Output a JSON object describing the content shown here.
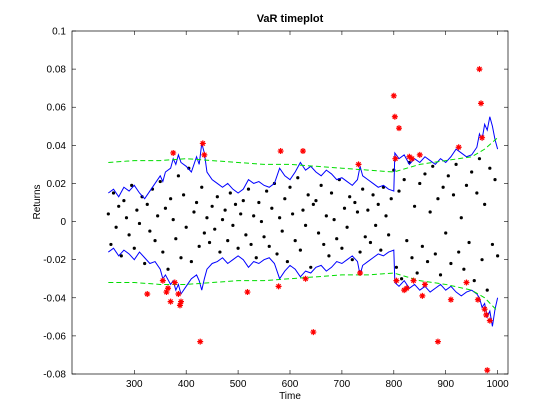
{
  "chart_data": {
    "type": "line",
    "title": "VaR timeplot",
    "xlabel": "Time",
    "ylabel": "Returns",
    "xlim": [
      180,
      1020
    ],
    "xticks": [
      300,
      400,
      500,
      600,
      700,
      800,
      900,
      1000
    ],
    "ylim": [
      -0.08,
      0.1
    ],
    "yticks": [
      -0.08,
      -0.06,
      -0.04,
      -0.02,
      0,
      0.02,
      0.04,
      0.06,
      0.08,
      0.1
    ],
    "grid": false,
    "series": [
      {
        "style": "markers",
        "color": "#000000",
        "x": [
          250,
          255,
          260,
          265,
          270,
          275,
          280,
          285,
          290,
          295,
          300,
          305,
          310,
          315,
          320,
          325,
          330,
          335,
          340,
          345,
          350,
          355,
          360,
          365,
          370,
          375,
          380,
          385,
          390,
          395,
          400,
          405,
          410,
          415,
          420,
          425,
          430,
          435,
          440,
          445,
          450,
          455,
          460,
          465,
          470,
          475,
          480,
          485,
          490,
          495,
          500,
          505,
          510,
          515,
          520,
          525,
          530,
          535,
          540,
          545,
          550,
          555,
          560,
          565,
          570,
          575,
          580,
          585,
          590,
          595,
          600,
          605,
          610,
          615,
          620,
          625,
          630,
          635,
          640,
          645,
          650,
          655,
          660,
          665,
          670,
          675,
          680,
          685,
          690,
          695,
          700,
          705,
          710,
          715,
          720,
          725,
          730,
          735,
          740,
          745,
          750,
          755,
          760,
          765,
          770,
          775,
          780,
          785,
          790,
          795,
          800,
          805,
          810,
          815,
          820,
          825,
          830,
          835,
          840,
          845,
          850,
          855,
          860,
          865,
          870,
          875,
          880,
          885,
          890,
          895,
          900,
          905,
          910,
          915,
          920,
          925,
          930,
          935,
          940,
          945,
          950,
          955,
          960,
          965,
          970,
          975,
          980,
          985,
          990,
          995,
          1000
        ],
        "values": [
          0.004,
          -0.012,
          0.015,
          -0.003,
          0.008,
          -0.018,
          0.011,
          0.002,
          -0.007,
          0.019,
          -0.014,
          0.006,
          -0.001,
          0.013,
          -0.022,
          0.009,
          -0.005,
          0.017,
          -0.01,
          0.003,
          0.021,
          -0.016,
          0.007,
          -0.025,
          0.012,
          0.001,
          -0.009,
          0.024,
          -0.019,
          0.014,
          -0.003,
          0.028,
          -0.021,
          0.005,
          0.01,
          -0.013,
          0.018,
          -0.006,
          0.002,
          -0.011,
          0.008,
          -0.004,
          0.013,
          -0.016,
          0.001,
          0.006,
          -0.01,
          0.015,
          -0.002,
          0.009,
          -0.014,
          0.004,
          0.011,
          -0.007,
          0.017,
          -0.012,
          0.003,
          -0.019,
          0.01,
          0.0,
          -0.008,
          0.016,
          -0.013,
          0.007,
          0.02,
          -0.017,
          0.002,
          -0.005,
          0.012,
          -0.021,
          0.018,
          0.004,
          -0.01,
          0.023,
          -0.015,
          0.006,
          -0.002,
          0.014,
          -0.024,
          0.009,
          0.011,
          -0.006,
          0.019,
          -0.012,
          0.003,
          -0.018,
          0.015,
          0.001,
          -0.009,
          0.022,
          -0.014,
          0.007,
          -0.003,
          0.013,
          -0.02,
          0.01,
          0.005,
          -0.016,
          0.017,
          -0.008,
          0.006,
          -0.011,
          0.014,
          -0.002,
          0.009,
          -0.015,
          0.018,
          0.003,
          -0.007,
          0.012,
          0.027,
          -0.024,
          0.016,
          -0.03,
          0.022,
          -0.01,
          0.031,
          -0.019,
          0.008,
          -0.027,
          0.02,
          -0.013,
          0.025,
          -0.021,
          0.005,
          0.029,
          -0.017,
          0.012,
          -0.028,
          0.018,
          -0.006,
          0.024,
          -0.022,
          0.014,
          0.03,
          -0.016,
          0.002,
          -0.025,
          0.019,
          -0.011,
          0.026,
          -0.031,
          0.015,
          0.033,
          -0.02,
          0.009,
          -0.036,
          0.028,
          -0.012,
          0.022,
          -0.018
        ]
      },
      {
        "style": "line",
        "color": "#0000ff",
        "x": [
          250,
          260,
          270,
          280,
          290,
          300,
          310,
          320,
          330,
          340,
          350,
          355,
          360,
          370,
          375,
          380,
          385,
          390,
          400,
          410,
          420,
          425,
          430,
          435,
          440,
          450,
          460,
          470,
          480,
          490,
          500,
          510,
          520,
          530,
          540,
          550,
          560,
          570,
          580,
          590,
          600,
          610,
          620,
          630,
          640,
          650,
          660,
          670,
          680,
          690,
          700,
          710,
          720,
          730,
          735,
          740,
          750,
          760,
          770,
          780,
          790,
          800,
          802,
          810,
          820,
          830,
          840,
          850,
          860,
          870,
          880,
          890,
          900,
          910,
          920,
          930,
          940,
          950,
          960,
          965,
          970,
          975,
          980,
          985,
          990,
          995,
          1000
        ],
        "values": [
          0.015,
          0.017,
          0.013,
          0.018,
          0.016,
          0.019,
          0.015,
          0.012,
          0.016,
          0.02,
          0.024,
          0.021,
          0.026,
          0.028,
          0.033,
          0.03,
          0.035,
          0.031,
          0.029,
          0.026,
          0.034,
          0.03,
          0.041,
          0.036,
          0.026,
          0.022,
          0.02,
          0.018,
          0.02,
          0.017,
          0.015,
          0.017,
          0.022,
          0.02,
          0.021,
          0.019,
          0.018,
          0.02,
          0.028,
          0.024,
          0.022,
          0.026,
          0.031,
          0.027,
          0.029,
          0.026,
          0.024,
          0.027,
          0.025,
          0.022,
          0.023,
          0.021,
          0.019,
          0.022,
          0.029,
          0.024,
          0.022,
          0.02,
          0.018,
          0.019,
          0.017,
          0.016,
          0.036,
          0.033,
          0.035,
          0.03,
          0.033,
          0.031,
          0.034,
          0.032,
          0.03,
          0.033,
          0.031,
          0.034,
          0.038,
          0.036,
          0.034,
          0.035,
          0.039,
          0.046,
          0.043,
          0.051,
          0.048,
          0.055,
          0.05,
          0.043,
          0.038
        ]
      },
      {
        "style": "line",
        "color": "#0000ff",
        "x": [
          250,
          260,
          270,
          280,
          290,
          300,
          310,
          320,
          330,
          340,
          350,
          355,
          360,
          370,
          375,
          380,
          385,
          390,
          400,
          410,
          420,
          425,
          430,
          435,
          440,
          450,
          460,
          470,
          480,
          490,
          500,
          510,
          520,
          530,
          540,
          550,
          560,
          570,
          580,
          590,
          600,
          610,
          620,
          630,
          640,
          650,
          660,
          670,
          680,
          690,
          700,
          710,
          720,
          730,
          735,
          740,
          750,
          760,
          770,
          780,
          790,
          800,
          802,
          810,
          820,
          830,
          840,
          850,
          860,
          870,
          880,
          890,
          900,
          910,
          920,
          930,
          940,
          950,
          960,
          965,
          970,
          975,
          980,
          985,
          990,
          995,
          1000
        ],
        "values": [
          -0.016,
          -0.014,
          -0.018,
          -0.015,
          -0.017,
          -0.02,
          -0.016,
          -0.019,
          -0.022,
          -0.021,
          -0.025,
          -0.03,
          -0.028,
          -0.033,
          -0.031,
          -0.036,
          -0.033,
          -0.038,
          -0.034,
          -0.03,
          -0.028,
          -0.031,
          -0.036,
          -0.03,
          -0.025,
          -0.022,
          -0.021,
          -0.019,
          -0.022,
          -0.02,
          -0.018,
          -0.02,
          -0.024,
          -0.021,
          -0.022,
          -0.02,
          -0.019,
          -0.022,
          -0.03,
          -0.026,
          -0.023,
          -0.025,
          -0.029,
          -0.026,
          -0.027,
          -0.024,
          -0.023,
          -0.026,
          -0.024,
          -0.021,
          -0.022,
          -0.02,
          -0.018,
          -0.021,
          -0.028,
          -0.023,
          -0.021,
          -0.019,
          -0.017,
          -0.018,
          -0.016,
          -0.015,
          -0.032,
          -0.034,
          -0.031,
          -0.035,
          -0.033,
          -0.036,
          -0.034,
          -0.037,
          -0.035,
          -0.033,
          -0.036,
          -0.034,
          -0.037,
          -0.039,
          -0.037,
          -0.036,
          -0.038,
          -0.04,
          -0.045,
          -0.043,
          -0.05,
          -0.047,
          -0.055,
          -0.046,
          -0.04
        ]
      },
      {
        "style": "dashed",
        "color": "#00dd00",
        "x": [
          250,
          300,
          350,
          400,
          450,
          500,
          550,
          600,
          650,
          700,
          750,
          800,
          850,
          900,
          950,
          975,
          1000
        ],
        "values": [
          0.031,
          0.032,
          0.032,
          0.033,
          0.032,
          0.031,
          0.03,
          0.03,
          0.029,
          0.028,
          0.027,
          0.026,
          0.03,
          0.032,
          0.034,
          0.038,
          0.044
        ]
      },
      {
        "style": "dashed",
        "color": "#00dd00",
        "x": [
          250,
          300,
          350,
          400,
          450,
          500,
          550,
          600,
          650,
          700,
          750,
          800,
          850,
          900,
          950,
          975,
          1000
        ],
        "values": [
          -0.032,
          -0.032,
          -0.033,
          -0.033,
          -0.032,
          -0.031,
          -0.031,
          -0.03,
          -0.029,
          -0.028,
          -0.028,
          -0.027,
          -0.031,
          -0.033,
          -0.036,
          -0.04,
          -0.047
        ]
      },
      {
        "style": "asterisk",
        "color": "#ff0000",
        "x": [
          325,
          355,
          362,
          365,
          370,
          375,
          378,
          385,
          388,
          390,
          427,
          432,
          435,
          518,
          578,
          582,
          625,
          630,
          645,
          732,
          735,
          800,
          802,
          803,
          805,
          810,
          820,
          825,
          830,
          835,
          838,
          850,
          855,
          860,
          885,
          910,
          925,
          940,
          962,
          965,
          968,
          970,
          975,
          978,
          980,
          985
        ],
        "values": [
          -0.038,
          -0.031,
          -0.037,
          -0.035,
          -0.042,
          0.036,
          -0.032,
          -0.038,
          -0.044,
          -0.042,
          -0.063,
          0.041,
          0.035,
          -0.037,
          -0.034,
          0.037,
          0.037,
          -0.03,
          -0.058,
          0.03,
          -0.027,
          0.066,
          0.055,
          0.033,
          -0.031,
          0.049,
          -0.036,
          -0.035,
          0.034,
          0.033,
          -0.031,
          0.035,
          -0.039,
          -0.033,
          -0.063,
          -0.041,
          0.039,
          -0.032,
          -0.041,
          0.08,
          0.062,
          0.044,
          -0.046,
          -0.049,
          -0.078,
          -0.052
        ]
      }
    ]
  }
}
